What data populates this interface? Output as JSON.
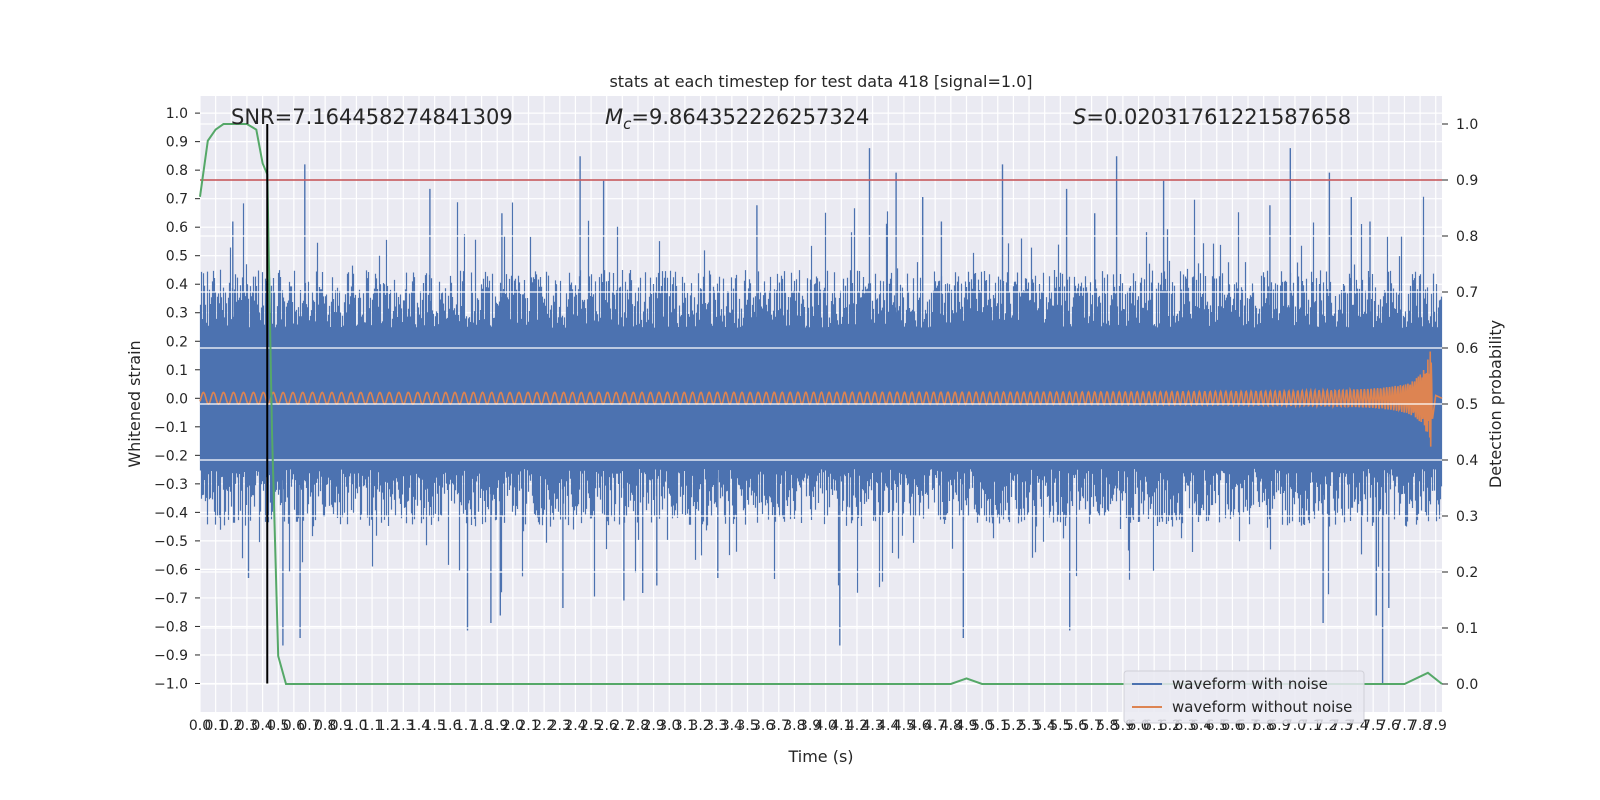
{
  "chart_data": {
    "type": "line",
    "title": "stats at each timestep for test data 418 [signal=1.0]",
    "xlabel": "Time (s)",
    "ylabel": "Whitened strain",
    "y2label": "Detection probability",
    "xlim": [
      0.0,
      7.94
    ],
    "ylim": [
      -1.1,
      1.06
    ],
    "y2lim": [
      -0.05,
      1.05
    ],
    "x_ticks": [
      "0.0",
      "0.1",
      "0.2",
      "0.3",
      "0.4",
      "0.5",
      "0.6",
      "0.7",
      "0.8",
      "0.9",
      "1.0",
      "1.1",
      "1.2",
      "1.3",
      "1.4",
      "1.5",
      "1.6",
      "1.7",
      "1.8",
      "1.9",
      "2.0",
      "2.1",
      "2.2",
      "2.3",
      "2.4",
      "2.5",
      "2.6",
      "2.7",
      "2.8",
      "2.9",
      "3.0",
      "3.1",
      "3.2",
      "3.3",
      "3.4",
      "3.5",
      "3.6",
      "3.7",
      "3.8",
      "3.9",
      "4.0",
      "4.1",
      "4.2",
      "4.3",
      "4.4",
      "4.5",
      "4.6",
      "4.7",
      "4.8",
      "4.9",
      "5.0",
      "5.1",
      "5.2",
      "5.3",
      "5.4",
      "5.5",
      "5.6",
      "5.7",
      "5.8",
      "5.9",
      "6.0",
      "6.1",
      "6.2",
      "6.3",
      "6.4",
      "6.5",
      "6.6",
      "6.7",
      "6.8",
      "6.9",
      "7.0",
      "7.1",
      "7.2",
      "7.3",
      "7.4",
      "7.5",
      "7.6",
      "7.7",
      "7.8",
      "7.9"
    ],
    "y_ticks": [
      "1.0",
      "0.9",
      "0.8",
      "0.7",
      "0.6",
      "0.5",
      "0.4",
      "0.3",
      "0.2",
      "0.1",
      "0.0",
      "−0.1",
      "−0.2",
      "−0.3",
      "−0.4",
      "−0.5",
      "−0.6",
      "−0.7",
      "−0.8",
      "−0.9",
      "−1.0"
    ],
    "y2_ticks": [
      "1.0",
      "0.9",
      "0.8",
      "0.7",
      "0.6",
      "0.5",
      "0.4",
      "0.3",
      "0.2",
      "0.1",
      "0.0"
    ],
    "annotations": {
      "snr": "SNR=7.164458274841309",
      "mc_symbol": "M",
      "mc_sub": "c",
      "mc_value": "=9.864352226257324",
      "s_symbol": "S",
      "s_value": "=0.02031761221587658"
    },
    "threshold": {
      "y2": 0.9,
      "color": "#c44e52"
    },
    "detection_time": 0.43,
    "series": [
      {
        "name": "waveform with noise",
        "color": "#4c72b0",
        "envelope": 0.45,
        "spike_max": 0.93,
        "spike_min": -1.0
      },
      {
        "name": "waveform without noise",
        "color": "#dd8452",
        "amplitude_start": 0.02,
        "amplitude_end": 0.27,
        "merger_time": 7.88
      },
      {
        "color": "#55a868",
        "x": [
          0.0,
          0.05,
          0.1,
          0.15,
          0.2,
          0.3,
          0.36,
          0.4,
          0.43,
          0.46,
          0.5,
          0.55,
          0.6,
          4.5,
          4.6,
          4.8,
          4.9,
          5.0,
          7.7,
          7.85,
          7.94
        ],
        "y": [
          0.87,
          0.97,
          0.99,
          1.0,
          1.0,
          1.0,
          0.99,
          0.93,
          0.91,
          0.45,
          0.05,
          0.0,
          0.0,
          0.0,
          0.0,
          0.0,
          0.01,
          0.0,
          0.0,
          0.02,
          0.0
        ]
      }
    ],
    "legend": {
      "placement": "lower-right"
    },
    "grid": true,
    "colors": {
      "axes_bg": "#eaeaf2",
      "grid": "#ffffff"
    }
  }
}
